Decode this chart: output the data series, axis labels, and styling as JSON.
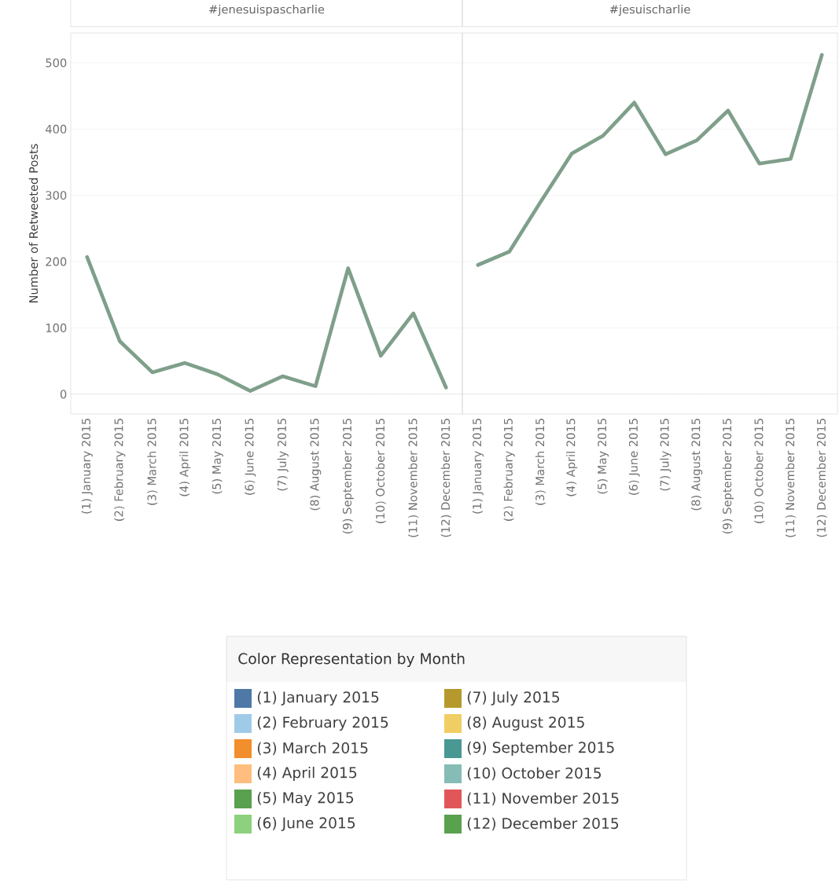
{
  "chart_data": [
    {
      "type": "line",
      "title": "#jenesuispascharlie",
      "ylabel": "Number of Retweeted Posts",
      "legend_title": "Color Representation by Month",
      "grid": "y",
      "ylim": [
        -30,
        545
      ],
      "yticks": [
        0,
        100,
        200,
        300,
        400,
        500
      ],
      "categories": [
        "(1) January 2015",
        "(2) February 2015",
        "(3) March 2015",
        "(4) April 2015",
        "(5) May 2015",
        "(6) June 2015",
        "(7) July 2015",
        "(8) August 2015",
        "(9) September 2015",
        "(10) October 2015",
        "(11) November 2015",
        "(12) December 2015"
      ],
      "values": [
        207,
        80,
        33,
        47,
        30,
        5,
        27,
        12,
        190,
        58,
        122,
        10
      ],
      "color": "#7f9f8a",
      "colors": [
        "#4e79a7",
        "#a0cbe8",
        "#f28e2b",
        "#ffbe7d",
        "#59a14f",
        "#8cd17d",
        "#b6992d",
        "#f1ce63",
        "#499894",
        "#86bcb6",
        "#e15759",
        "#59a14f"
      ],
      "ref_lines": [
        {
          "axis": "y",
          "value": 0,
          "line_style": "dotted"
        }
      ]
    },
    {
      "type": "line",
      "title": "#jesuischarlie",
      "grid": "y",
      "tick_labels": "x",
      "ylim": [
        -30,
        545
      ],
      "yticks": [
        0,
        100,
        200,
        300,
        400,
        500
      ],
      "categories": [
        "(1) January 2015",
        "(2) February 2015",
        "(3) March 2015",
        "(4) April 2015",
        "(5) May 2015",
        "(6) June 2015",
        "(7) July 2015",
        "(8) August 2015",
        "(9) September 2015",
        "(10) October 2015",
        "(11) November 2015",
        "(12) December 2015"
      ],
      "values": [
        195,
        215,
        290,
        363,
        390,
        440,
        362,
        383,
        428,
        348,
        355,
        512
      ],
      "color": "#7f9f8a",
      "colors": [
        "#4e79a7",
        "#a0cbe8",
        "#f28e2b",
        "#ffbe7d",
        "#59a14f",
        "#8cd17d",
        "#b6992d",
        "#f1ce63",
        "#499894",
        "#86bcb6",
        "#e15759",
        "#59a14f"
      ],
      "ref_lines": [
        {
          "axis": "y",
          "value": 0,
          "line_style": "dotted"
        }
      ]
    }
  ]
}
